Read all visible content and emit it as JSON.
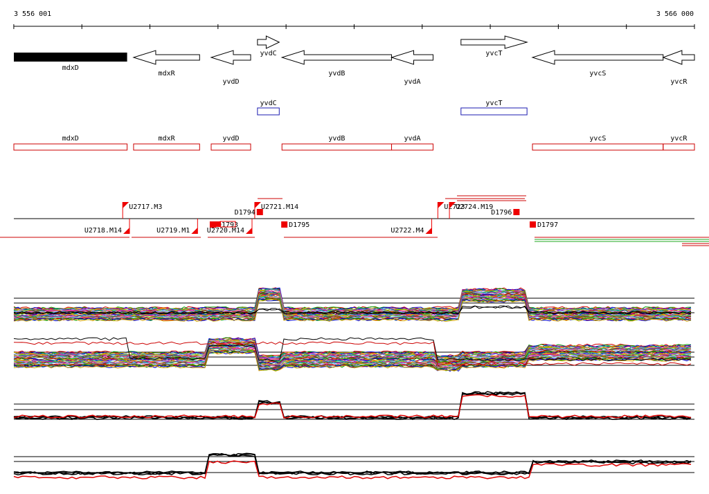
{
  "ruler": {
    "start_label": "3 556 001",
    "end_label": "3 566 000",
    "start": 3556001,
    "end": 3566000
  },
  "colors": {
    "gene_outline": "#000000",
    "cds_outline": "#cc0000",
    "noncoding_outline": "#1a1ab0",
    "transcript": "#cc0000",
    "promoter_flag": "#ee0000",
    "terminator": "#ee0000",
    "alt_line_green": "#22aa22"
  },
  "genes": [
    {
      "name": "mdxD",
      "dir": "solid",
      "s": 3556001,
      "e": 3557665
    },
    {
      "name": "mdxR",
      "dir": "rev",
      "s": 3557760,
      "e": 3558730
    },
    {
      "name": "yvdD",
      "dir": "rev",
      "s": 3558900,
      "e": 3559480
    },
    {
      "name": "yvdC",
      "dir": "fwd",
      "s": 3559580,
      "e": 3559900
    },
    {
      "name": "yvdB",
      "dir": "rev",
      "s": 3559940,
      "e": 3561550
    },
    {
      "name": "yvdA",
      "dir": "rev",
      "s": 3561550,
      "e": 3562160
    },
    {
      "name": "yvcT",
      "dir": "fwd",
      "s": 3562570,
      "e": 3563540
    },
    {
      "name": "yvcS",
      "dir": "rev",
      "s": 3563620,
      "e": 3565540
    },
    {
      "name": "yvcR",
      "dir": "rev",
      "s": 3565540,
      "e": 3566000
    }
  ],
  "noncoding": [
    {
      "name": "yvdC",
      "s": 3559580,
      "e": 3559900
    },
    {
      "name": "yvcT",
      "s": 3562570,
      "e": 3563540
    }
  ],
  "cds": [
    {
      "name": "mdxD",
      "s": 3556001,
      "e": 3557665
    },
    {
      "name": "mdxR",
      "s": 3557760,
      "e": 3558730
    },
    {
      "name": "yvdD",
      "s": 3558900,
      "e": 3559480
    },
    {
      "name": "yvdB",
      "s": 3559940,
      "e": 3561550
    },
    {
      "name": "yvdA",
      "s": 3561550,
      "e": 3562160
    },
    {
      "name": "yvcS",
      "s": 3563620,
      "e": 3565540
    },
    {
      "name": "yvcR",
      "s": 3565540,
      "e": 3566000
    }
  ],
  "promoters": [
    {
      "label": "U2717.M3",
      "strand": "+",
      "pos": 3557600
    },
    {
      "label": "U2718.M14",
      "strand": "-",
      "pos": 3557700
    },
    {
      "label": "U2719.M1",
      "strand": "-",
      "pos": 3558700
    },
    {
      "label": "U2720.M14",
      "strand": "-",
      "pos": 3559500
    },
    {
      "label": "U2721.M14",
      "strand": "+",
      "pos": 3559540
    },
    {
      "label": "U2722.M4",
      "strand": "-",
      "pos": 3562140
    },
    {
      "label": "U2723",
      "strand": "+",
      "pos": 3562230
    },
    {
      "label": "U2724.M19",
      "strand": "+",
      "pos": 3562400
    }
  ],
  "terminators": [
    {
      "label": "D1793",
      "strand": "-",
      "pos": 3558930
    },
    {
      "label": "D1794",
      "strand": "+",
      "pos": 3559620
    },
    {
      "label": "D1795",
      "strand": "-",
      "pos": 3559980
    },
    {
      "label": "D1796",
      "strand": "+",
      "pos": 3563390
    },
    {
      "label": "D1797",
      "strand": "-",
      "pos": 3563630
    }
  ]
}
